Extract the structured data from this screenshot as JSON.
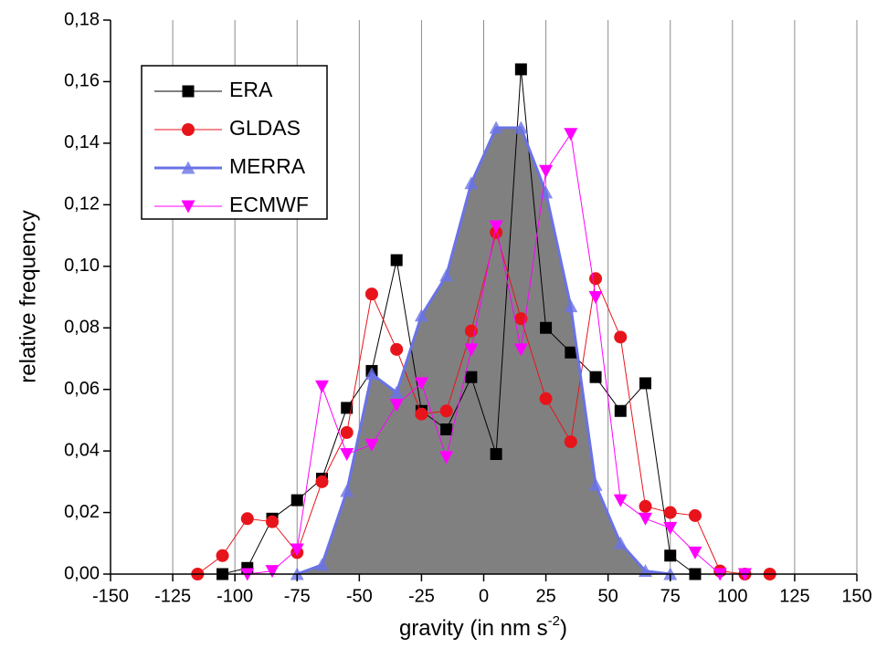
{
  "chart_data": {
    "type": "line",
    "x_label": {
      "text": "gravity (in nm s",
      "superscript": "-2",
      "close": ")"
    },
    "y_label": "relative frequency",
    "xlim": [
      -150,
      150
    ],
    "xticks": [
      -150,
      -125,
      -100,
      -75,
      -50,
      -25,
      0,
      25,
      50,
      75,
      100,
      125,
      150
    ],
    "ylim": [
      0,
      0.18
    ],
    "yticks": [
      {
        "value": 0,
        "label": "0,00"
      },
      {
        "value": 0.02,
        "label": "0,02"
      },
      {
        "value": 0.04,
        "label": "0,04"
      },
      {
        "value": 0.06,
        "label": "0,06"
      },
      {
        "value": 0.08,
        "label": "0,08"
      },
      {
        "value": 0.1,
        "label": "0,10"
      },
      {
        "value": 0.12,
        "label": "0,12"
      },
      {
        "value": 0.14,
        "label": "0,14"
      },
      {
        "value": 0.16,
        "label": "0,16"
      },
      {
        "value": 0.18,
        "label": "0,18"
      }
    ],
    "grid": "x",
    "legend": "top-left",
    "series": [
      {
        "name": "ERA",
        "color": "#000000",
        "marker": "square",
        "line_width": 1,
        "x": [
          -105,
          -95,
          -85,
          -75,
          -65,
          -55,
          -45,
          -35,
          -25,
          -15,
          -5,
          5,
          15,
          25,
          35,
          45,
          55,
          65,
          75,
          85
        ],
        "values": [
          0,
          0.002,
          0.018,
          0.024,
          0.031,
          0.054,
          0.066,
          0.102,
          0.053,
          0.047,
          0.064,
          0.039,
          0.164,
          0.08,
          0.072,
          0.064,
          0.053,
          0.062,
          0.006,
          0
        ]
      },
      {
        "name": "GLDAS",
        "color": "#e8141b",
        "marker": "circle",
        "line_width": 1,
        "x": [
          -115,
          -105,
          -95,
          -85,
          -75,
          -65,
          -55,
          -45,
          -35,
          -25,
          -15,
          -5,
          5,
          15,
          25,
          35,
          45,
          55,
          65,
          75,
          85,
          95,
          105,
          115
        ],
        "values": [
          0,
          0.006,
          0.018,
          0.017,
          0.007,
          0.03,
          0.046,
          0.091,
          0.073,
          0.052,
          0.053,
          0.079,
          0.111,
          0.083,
          0.057,
          0.043,
          0.096,
          0.077,
          0.022,
          0.02,
          0.019,
          0.001,
          0,
          0
        ]
      },
      {
        "name": "MERRA",
        "color": "#6a72e6",
        "marker": "triangle",
        "line_width": 3,
        "fill": "#808080",
        "x": [
          -75,
          -65,
          -55,
          -45,
          -35,
          -25,
          -15,
          -5,
          5,
          15,
          25,
          35,
          45,
          55,
          65,
          75
        ],
        "values": [
          0,
          0.003,
          0.027,
          0.065,
          0.059,
          0.084,
          0.097,
          0.127,
          0.145,
          0.145,
          0.124,
          0.087,
          0.029,
          0.01,
          0.001,
          0
        ]
      },
      {
        "name": "ECMWF",
        "color": "#ff00ff",
        "marker": "triangle-down",
        "line_width": 1,
        "x": [
          -95,
          -85,
          -75,
          -65,
          -55,
          -45,
          -35,
          -25,
          -15,
          -5,
          5,
          15,
          25,
          35,
          45,
          55,
          65,
          75,
          85,
          95,
          105
        ],
        "values": [
          0,
          0.001,
          0.008,
          0.061,
          0.039,
          0.042,
          0.055,
          0.062,
          0.038,
          0.073,
          0.113,
          0.073,
          0.131,
          0.143,
          0.09,
          0.024,
          0.018,
          0.015,
          0.007,
          0,
          0
        ]
      }
    ]
  }
}
